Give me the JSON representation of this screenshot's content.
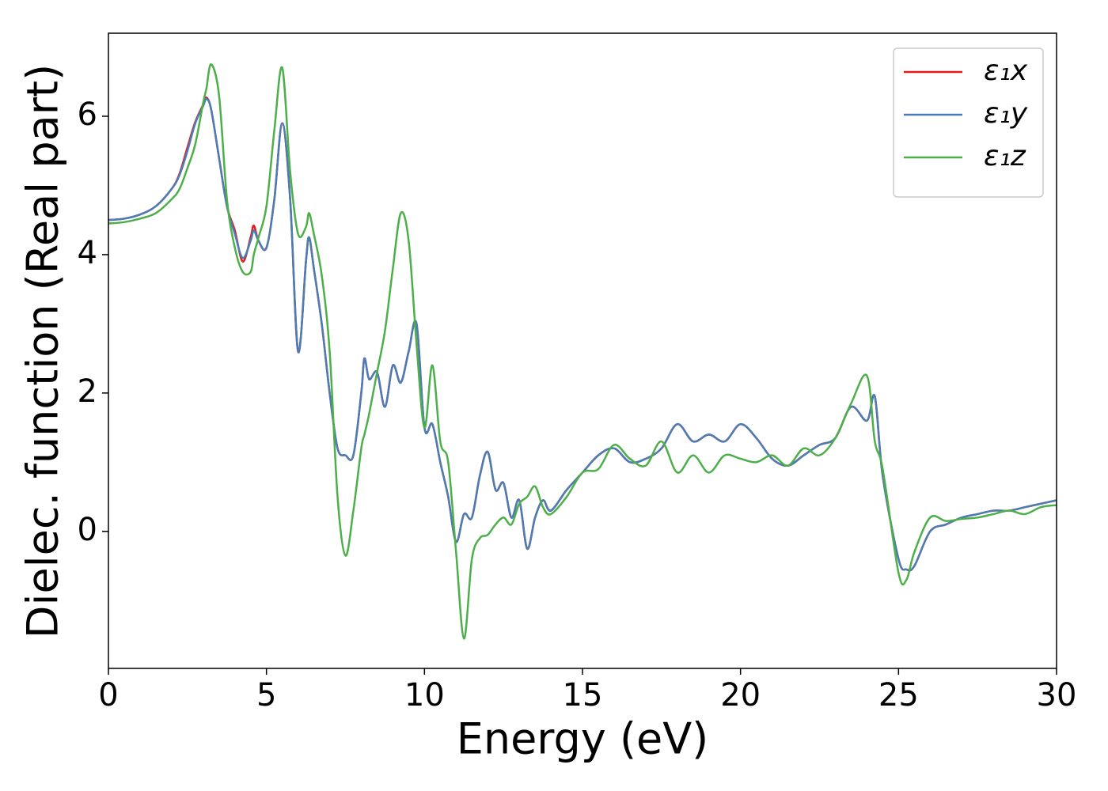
{
  "chart_data": {
    "type": "line",
    "x_label": "Energy (eV)",
    "y_label": "Dielec. function (Real part)",
    "xlim": [
      0,
      30
    ],
    "xticks": [
      0,
      5,
      10,
      15,
      20,
      25,
      30
    ],
    "ylim": [
      -1.98,
      7.2
    ],
    "yticks": [
      0,
      2,
      4,
      6
    ],
    "grid": false,
    "legend": "upper right",
    "x": [
      0,
      0.5,
      1,
      1.5,
      2,
      2.25,
      2.5,
      2.75,
      3,
      3.1,
      3.25,
      3.5,
      3.75,
      4,
      4.25,
      4.5,
      4.6,
      4.75,
      5,
      5.25,
      5.5,
      5.75,
      6,
      6.25,
      6.35,
      6.5,
      6.75,
      7,
      7.25,
      7.5,
      7.75,
      8,
      8.1,
      8.25,
      8.5,
      8.75,
      9,
      9.25,
      9.5,
      9.75,
      10,
      10.25,
      10.5,
      10.75,
      11,
      11.25,
      11.5,
      11.75,
      12,
      12.25,
      12.5,
      12.75,
      13,
      13.25,
      13.5,
      13.75,
      14,
      14.5,
      15,
      15.5,
      16,
      16.5,
      17,
      17.5,
      18,
      18.5,
      19,
      19.5,
      20,
      20.5,
      21,
      21.5,
      22,
      22.5,
      23,
      23.5,
      24,
      24.25,
      24.5,
      25,
      25.25,
      25.5,
      26,
      26.5,
      27,
      27.5,
      28,
      28.5,
      29,
      29.5,
      30
    ],
    "series": [
      {
        "name": "ε₁x",
        "color": "#e41a1c",
        "values": [
          4.5,
          4.52,
          4.58,
          4.7,
          4.95,
          5.17,
          5.55,
          5.92,
          6.17,
          6.27,
          6.1,
          5.4,
          4.7,
          4.35,
          3.9,
          4.25,
          4.42,
          4.2,
          4.1,
          4.8,
          5.9,
          4.8,
          2.6,
          3.9,
          4.25,
          3.8,
          3.0,
          2.0,
          1.2,
          1.1,
          1.1,
          2.0,
          2.5,
          2.2,
          2.3,
          1.8,
          2.4,
          2.15,
          2.6,
          3.0,
          1.5,
          1.55,
          1.0,
          0.5,
          -0.15,
          0.25,
          0.2,
          0.8,
          1.15,
          0.6,
          0.7,
          0.2,
          0.45,
          -0.25,
          0.2,
          0.45,
          0.3,
          0.6,
          0.85,
          1.1,
          1.2,
          1.0,
          1.05,
          1.2,
          1.55,
          1.3,
          1.4,
          1.3,
          1.55,
          1.35,
          1.05,
          0.95,
          1.1,
          1.25,
          1.35,
          1.8,
          1.6,
          1.95,
          0.8,
          -0.4,
          -0.55,
          -0.5,
          0.0,
          0.1,
          0.2,
          0.25,
          0.3,
          0.3,
          0.35,
          0.4,
          0.45
        ]
      },
      {
        "name": "ε₁y",
        "color": "#4a7db5",
        "values": [
          4.5,
          4.52,
          4.58,
          4.7,
          4.95,
          5.15,
          5.5,
          5.9,
          6.15,
          6.25,
          6.1,
          5.4,
          4.7,
          4.3,
          3.95,
          4.2,
          4.35,
          4.2,
          4.1,
          4.8,
          5.9,
          4.8,
          2.6,
          3.9,
          4.25,
          3.8,
          3.0,
          2.0,
          1.2,
          1.1,
          1.1,
          2.0,
          2.5,
          2.2,
          2.3,
          1.8,
          2.4,
          2.15,
          2.6,
          3.0,
          1.5,
          1.55,
          1.0,
          0.5,
          -0.15,
          0.25,
          0.2,
          0.8,
          1.15,
          0.6,
          0.7,
          0.2,
          0.45,
          -0.25,
          0.2,
          0.45,
          0.3,
          0.6,
          0.85,
          1.1,
          1.2,
          1.0,
          1.05,
          1.2,
          1.55,
          1.3,
          1.4,
          1.3,
          1.55,
          1.35,
          1.05,
          0.95,
          1.1,
          1.25,
          1.35,
          1.8,
          1.6,
          1.95,
          0.8,
          -0.4,
          -0.55,
          -0.5,
          0.0,
          0.1,
          0.2,
          0.25,
          0.3,
          0.3,
          0.35,
          0.4,
          0.45
        ]
      },
      {
        "name": "ε₁z",
        "color": "#4daf4a",
        "values": [
          4.45,
          4.47,
          4.52,
          4.6,
          4.8,
          4.95,
          5.25,
          5.6,
          6.2,
          6.4,
          6.75,
          6.3,
          4.8,
          4.1,
          3.75,
          3.75,
          4.0,
          4.25,
          4.7,
          5.8,
          6.7,
          5.2,
          4.3,
          4.4,
          4.6,
          4.3,
          3.7,
          2.6,
          0.5,
          -0.35,
          0.3,
          1.2,
          1.4,
          1.7,
          2.3,
          2.9,
          3.8,
          4.6,
          4.2,
          2.7,
          1.5,
          2.4,
          1.3,
          1.0,
          -0.3,
          -1.55,
          -0.4,
          -0.1,
          -0.05,
          0.1,
          0.2,
          0.1,
          0.4,
          0.5,
          0.65,
          0.35,
          0.25,
          0.5,
          0.85,
          0.9,
          1.25,
          1.05,
          0.95,
          1.3,
          0.85,
          1.1,
          0.85,
          1.1,
          1.05,
          1.0,
          1.1,
          0.95,
          1.2,
          1.1,
          1.35,
          1.85,
          2.25,
          1.3,
          0.9,
          -0.6,
          -0.7,
          -0.3,
          0.2,
          0.15,
          0.18,
          0.2,
          0.25,
          0.3,
          0.25,
          0.35,
          0.38
        ]
      }
    ]
  }
}
